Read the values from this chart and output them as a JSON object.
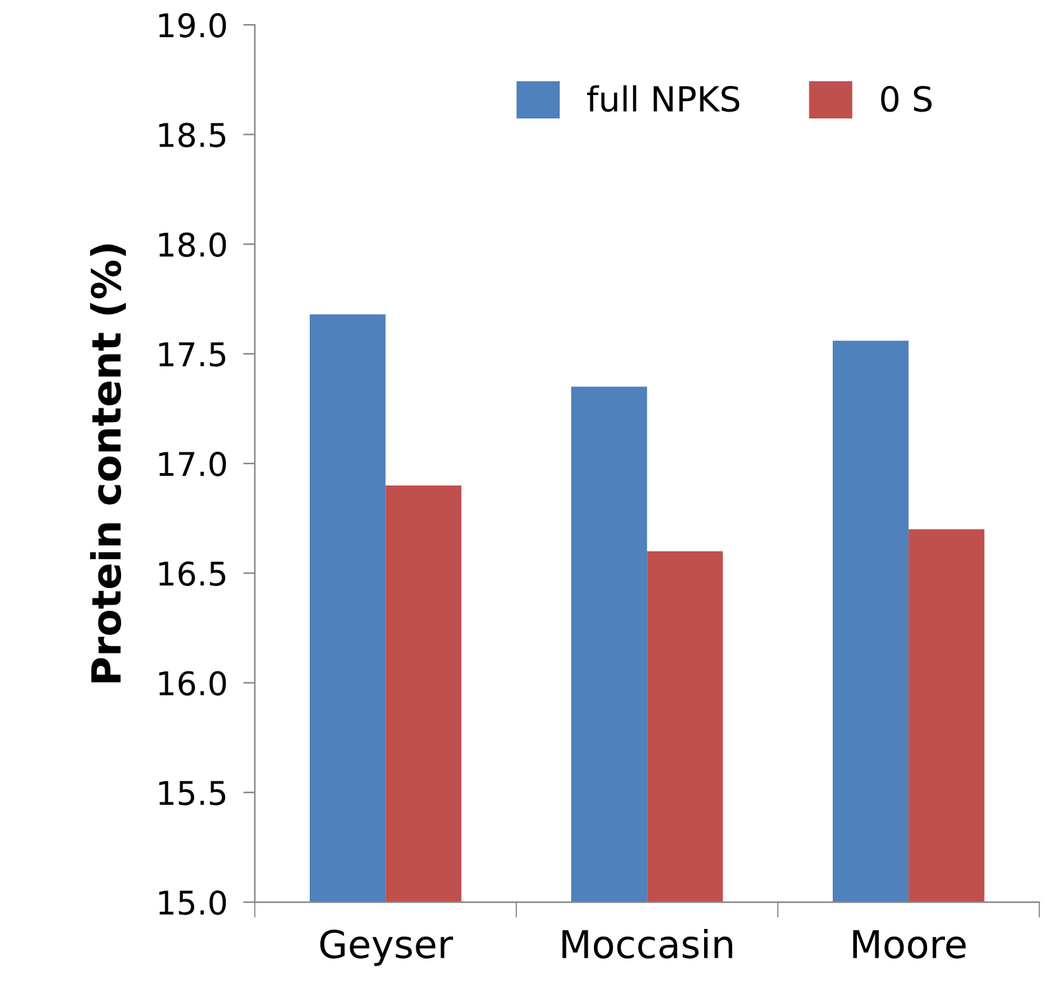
{
  "chart_data": {
    "type": "bar",
    "ylabel": "Protein content (%)",
    "categories": [
      "Geyser",
      "Moccasin",
      "Moore"
    ],
    "series": [
      {
        "name": "full NPKS",
        "color": "#4f81bd",
        "values": [
          17.68,
          17.35,
          17.56
        ]
      },
      {
        "name": "0 S",
        "color": "#c0504d",
        "values": [
          16.9,
          16.6,
          16.7
        ]
      }
    ],
    "ylim": [
      15.0,
      19.0
    ],
    "yticks": [
      {
        "value": 15.0,
        "label": "15.0"
      },
      {
        "value": 15.5,
        "label": "15.5"
      },
      {
        "value": 16.0,
        "label": "16.0"
      },
      {
        "value": 16.5,
        "label": "16.5"
      },
      {
        "value": 17.0,
        "label": "17.0"
      },
      {
        "value": 17.5,
        "label": "17.5"
      },
      {
        "value": 18.0,
        "label": "18.0"
      },
      {
        "value": 18.5,
        "label": "18.5"
      },
      {
        "value": 19.0,
        "label": "19.0"
      }
    ],
    "grid": false,
    "legend": "top"
  }
}
